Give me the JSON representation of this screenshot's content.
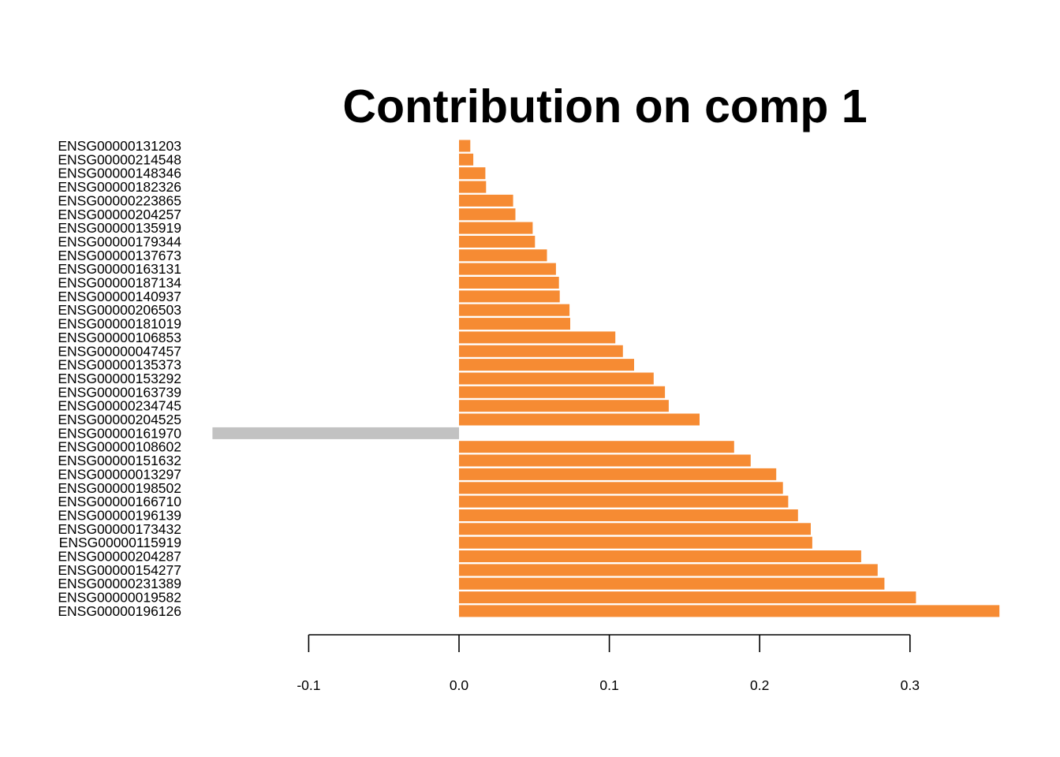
{
  "chart_data": {
    "type": "bar",
    "orientation": "horizontal",
    "title": "Contribution on comp 1",
    "xlabel": "",
    "ylabel": "",
    "xlim": [
      -0.16,
      0.36
    ],
    "xticks": [
      -0.1,
      0.0,
      0.1,
      0.2,
      0.3
    ],
    "xtick_labels": [
      "-0.1",
      "0.0",
      "0.1",
      "0.2",
      "0.3"
    ],
    "grid": false,
    "colors": {
      "positive": "#F68B33",
      "negative": "#C2C2C2"
    },
    "categories": [
      "ENSG00000131203",
      "ENSG00000214548",
      "ENSG00000148346",
      "ENSG00000182326",
      "ENSG00000223865",
      "ENSG00000204257",
      "ENSG00000135919",
      "ENSG00000179344",
      "ENSG00000137673",
      "ENSG00000163131",
      "ENSG00000187134",
      "ENSG00000140937",
      "ENSG00000206503",
      "ENSG00000181019",
      "ENSG00000106853",
      "ENSG00000047457",
      "ENSG00000135373",
      "ENSG00000153292",
      "ENSG00000163739",
      "ENSG00000234745",
      "ENSG00000204525",
      "ENSG00000161970",
      "ENSG00000108602",
      "ENSG00000151632",
      "ENSG00000013297",
      "ENSG00000198502",
      "ENSG00000166710",
      "ENSG00000196139",
      "ENSG00000173432",
      "ENSG00000115919",
      "ENSG00000204287",
      "ENSG00000154277",
      "ENSG00000231389",
      "ENSG00000019582",
      "ENSG00000196126"
    ],
    "values": [
      0.0075,
      0.0095,
      0.0175,
      0.018,
      0.036,
      0.0375,
      0.049,
      0.0505,
      0.0585,
      0.0645,
      0.0665,
      0.067,
      0.0735,
      0.074,
      0.104,
      0.109,
      0.1165,
      0.1295,
      0.137,
      0.1395,
      0.16,
      -0.164,
      0.183,
      0.194,
      0.211,
      0.2155,
      0.219,
      0.2255,
      0.234,
      0.235,
      0.2675,
      0.2785,
      0.283,
      0.304,
      0.3595
    ]
  }
}
